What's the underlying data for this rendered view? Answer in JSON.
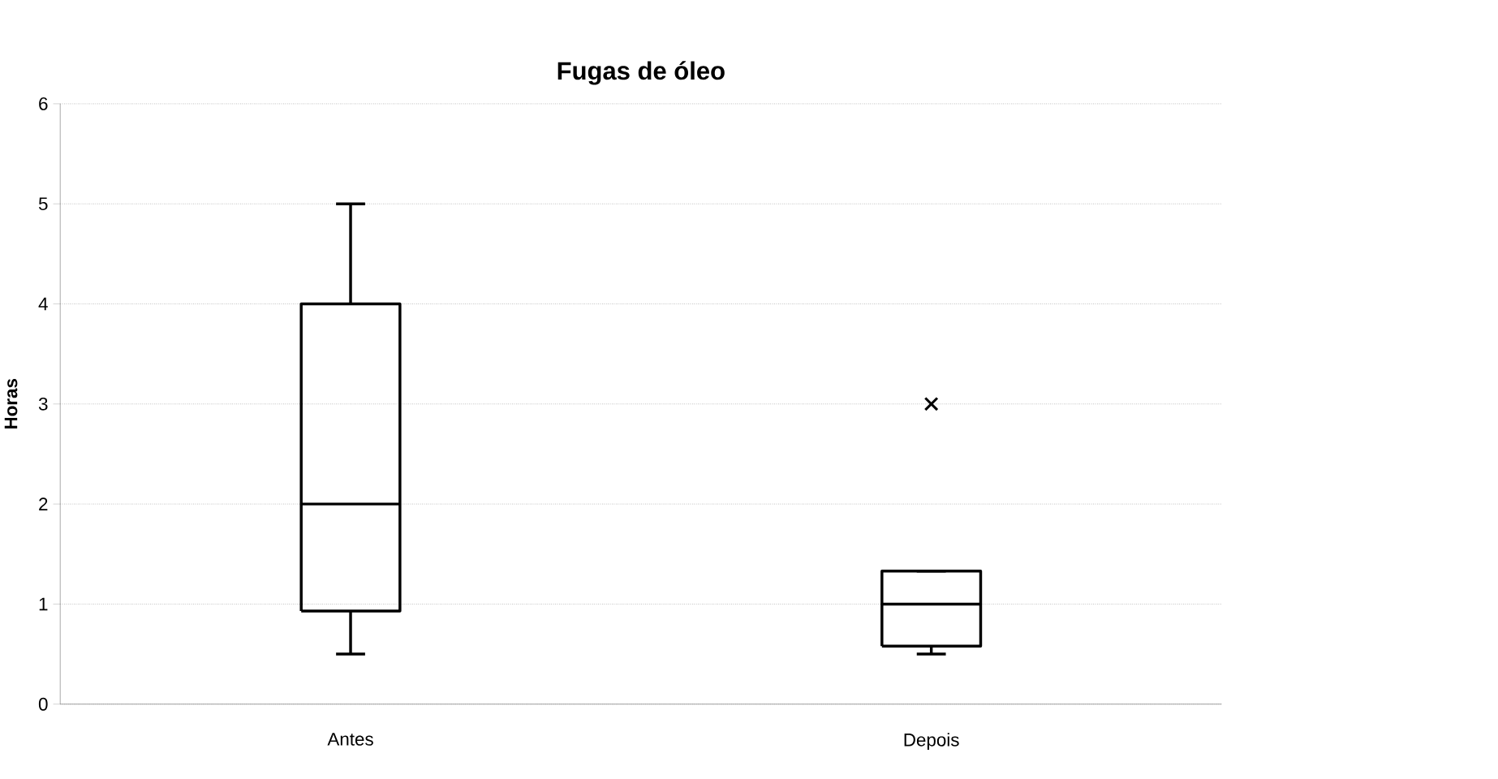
{
  "chart_data": {
    "type": "box",
    "title": "Fugas de óleo",
    "ylabel": "Horas",
    "categories": [
      "Antes",
      "Depois"
    ],
    "boxes": [
      {
        "low": 0.5,
        "q1": 0.93,
        "median": 2,
        "q3": 4,
        "high": 5
      },
      {
        "low": 0.5,
        "q1": 0.58,
        "median": 1,
        "q3": 1.33,
        "high": 1.33,
        "outliers": [
          3
        ]
      }
    ],
    "ylim": [
      0,
      6
    ],
    "yticks": [
      0,
      1,
      2,
      3,
      4,
      5,
      6
    ],
    "grid": "y",
    "marker": "cross"
  }
}
